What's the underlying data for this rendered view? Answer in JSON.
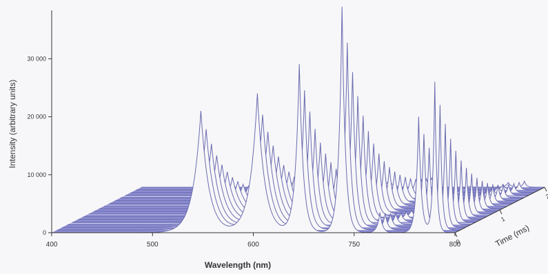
{
  "chart_data": {
    "type": "waterfall-3d-line",
    "title": "",
    "xlabel": "Wavelength (nm)",
    "ylabel": "Intensity (arbitrary units)",
    "zlabel": "Time (ms)",
    "xlim": [
      400,
      900
    ],
    "ylim": [
      0,
      38000
    ],
    "zlim": [
      0,
      2
    ],
    "x_ticks": [
      "400",
      "500",
      "600",
      "750",
      "800"
    ],
    "y_ticks": [
      "0",
      "10 000",
      "20 000",
      "30 000"
    ],
    "z_ticks": [
      "0",
      "1",
      "2"
    ],
    "slice_count": 18,
    "peaks": [
      {
        "wavelength": 585,
        "max_intensity": 21000
      },
      {
        "wavelength": 655,
        "max_intensity": 24000
      },
      {
        "wavelength": 707,
        "max_intensity": 29000
      },
      {
        "wavelength": 760,
        "max_intensity": 39000
      },
      {
        "wavelength": 807,
        "max_intensity": 3500
      },
      {
        "wavelength": 855,
        "max_intensity": 20000
      },
      {
        "wavelength": 875,
        "max_intensity": 26000
      }
    ],
    "colors": {
      "floor": "#8c8cd0",
      "floor_line": "#ffffff",
      "trace": "#6a6ab0",
      "axis": "#333333"
    }
  }
}
